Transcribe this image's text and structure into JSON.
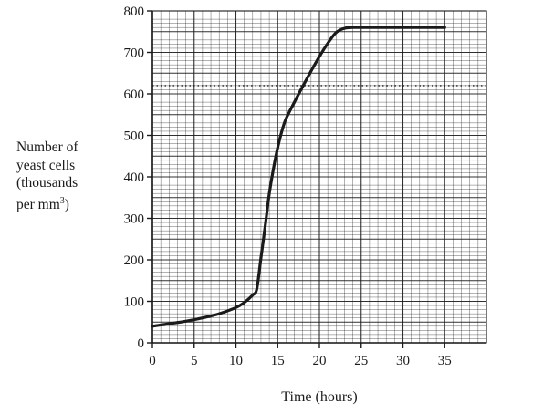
{
  "chart_data": {
    "type": "line",
    "title": "",
    "xlabel": "Time (hours)",
    "ylabel_lines": [
      "Number of",
      "yeast cells",
      "(thousands",
      "per mm"
    ],
    "ylabel_superscript": "3",
    "ylabel_close": ")",
    "xlim": [
      0,
      40
    ],
    "ylim": [
      0,
      800
    ],
    "x_ticks": [
      0,
      5,
      10,
      15,
      20,
      25,
      30,
      35
    ],
    "y_ticks": [
      0,
      100,
      200,
      300,
      400,
      500,
      600,
      700,
      800
    ],
    "grid": true,
    "series": [
      {
        "x": [
          0,
          2,
          4,
          6,
          8,
          10,
          11,
          12,
          12.5,
          13,
          13.5,
          14,
          14.5,
          15,
          15.5,
          16,
          17,
          18,
          19,
          20,
          21,
          22,
          23,
          24,
          25,
          30,
          35
        ],
        "y": [
          40,
          46,
          52,
          60,
          70,
          85,
          97,
          115,
          130,
          205,
          280,
          360,
          420,
          470,
          510,
          540,
          580,
          618,
          655,
          690,
          722,
          748,
          758,
          760,
          760,
          760,
          760
        ]
      }
    ],
    "colors": {
      "line": "#1a1a1a",
      "grid": "#1a1a1a"
    }
  }
}
